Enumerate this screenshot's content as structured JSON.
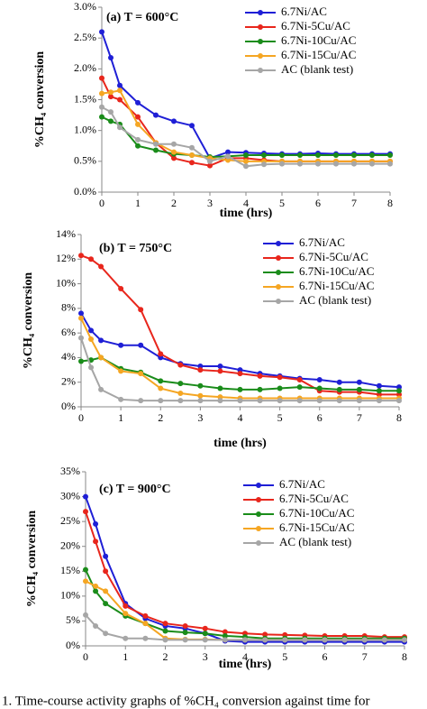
{
  "chart_data": [
    {
      "type": "line",
      "title": "(a) T = 600°C",
      "x_label": "time (hrs)",
      "y_label": "%CH₄ conversion",
      "x": [
        0,
        0.25,
        0.5,
        1,
        1.5,
        2,
        2.5,
        3,
        3.5,
        4,
        4.5,
        5,
        5.5,
        6,
        6.5,
        7,
        7.5,
        8
      ],
      "xlim": [
        0,
        8
      ],
      "xticks": [
        0,
        1,
        2,
        3,
        4,
        5,
        6,
        7,
        8
      ],
      "ylim": [
        0,
        3
      ],
      "yticks": [
        {
          "value": 0,
          "label": "0.0%"
        },
        {
          "value": 0.5,
          "label": "0.5%"
        },
        {
          "value": 1,
          "label": "1.0%"
        },
        {
          "value": 1.5,
          "label": "1.5%"
        },
        {
          "value": 2,
          "label": "2.0%"
        },
        {
          "value": 2.5,
          "label": "2.5%"
        },
        {
          "value": 3,
          "label": "3.0%"
        }
      ],
      "series": [
        {
          "name": "6.7Ni/AC",
          "color": "#1f1fd6",
          "values": [
            2.6,
            2.18,
            1.73,
            1.45,
            1.25,
            1.15,
            1.08,
            0.55,
            0.65,
            0.64,
            0.63,
            0.62,
            0.62,
            0.63,
            0.62,
            0.62,
            0.62,
            0.62
          ]
        },
        {
          "name": "6.7Ni-5Cu/AC",
          "color": "#e8261c",
          "values": [
            1.85,
            1.55,
            1.5,
            1.22,
            0.8,
            0.55,
            0.48,
            0.43,
            0.55,
            0.55,
            0.52,
            0.5,
            0.5,
            0.5,
            0.5,
            0.5,
            0.5,
            0.5
          ]
        },
        {
          "name": "6.7Ni-10Cu/AC",
          "color": "#1a8c1a",
          "values": [
            1.22,
            1.15,
            1.1,
            0.75,
            0.68,
            0.62,
            0.6,
            0.57,
            0.58,
            0.6,
            0.6,
            0.6,
            0.6,
            0.6,
            0.6,
            0.6,
            0.6,
            0.6
          ]
        },
        {
          "name": "6.7Ni-15Cu/AC",
          "color": "#f5a623",
          "values": [
            1.6,
            1.62,
            1.65,
            1.1,
            0.8,
            0.65,
            0.6,
            0.55,
            0.52,
            0.5,
            0.5,
            0.5,
            0.5,
            0.5,
            0.5,
            0.5,
            0.5,
            0.5
          ]
        },
        {
          "name": "AC (blank test)",
          "color": "#a6a6a6",
          "values": [
            1.38,
            1.3,
            1.05,
            0.85,
            0.78,
            0.78,
            0.72,
            0.5,
            0.58,
            0.42,
            0.45,
            0.46,
            0.46,
            0.46,
            0.46,
            0.46,
            0.46,
            0.46
          ]
        }
      ]
    },
    {
      "type": "line",
      "title": "(b) T = 750°C",
      "x_label": "time (hrs)",
      "y_label": "%CH₄ conversion",
      "x": [
        0,
        0.25,
        0.5,
        1,
        1.5,
        2,
        2.5,
        3,
        3.5,
        4,
        4.5,
        5,
        5.5,
        6,
        6.5,
        7,
        7.5,
        8
      ],
      "xlim": [
        0,
        8
      ],
      "xticks": [
        0,
        1,
        2,
        3,
        4,
        5,
        6,
        7,
        8
      ],
      "ylim": [
        0,
        14
      ],
      "yticks": [
        {
          "value": 0,
          "label": "0%"
        },
        {
          "value": 2,
          "label": "2%"
        },
        {
          "value": 4,
          "label": "4%"
        },
        {
          "value": 6,
          "label": "6%"
        },
        {
          "value": 8,
          "label": "8%"
        },
        {
          "value": 10,
          "label": "10%"
        },
        {
          "value": 12,
          "label": "12%"
        },
        {
          "value": 14,
          "label": "14%"
        }
      ],
      "series": [
        {
          "name": "6.7Ni/AC",
          "color": "#1f1fd6",
          "values": [
            7.6,
            6.2,
            5.4,
            5.0,
            5.0,
            4.0,
            3.5,
            3.3,
            3.3,
            3.0,
            2.7,
            2.5,
            2.3,
            2.2,
            2.0,
            2.0,
            1.7,
            1.6
          ]
        },
        {
          "name": "6.7Ni-5Cu/AC",
          "color": "#e8261c",
          "values": [
            12.3,
            12.0,
            11.4,
            9.6,
            7.9,
            4.3,
            3.4,
            3.0,
            2.9,
            2.7,
            2.5,
            2.4,
            2.2,
            1.3,
            1.2,
            1.2,
            1.0,
            1.0
          ]
        },
        {
          "name": "6.7Ni-10Cu/AC",
          "color": "#1a8c1a",
          "values": [
            3.7,
            3.8,
            4.0,
            3.1,
            2.8,
            2.1,
            1.9,
            1.7,
            1.5,
            1.4,
            1.4,
            1.5,
            1.6,
            1.5,
            1.4,
            1.4,
            1.3,
            1.3
          ]
        },
        {
          "name": "6.7Ni-15Cu/AC",
          "color": "#f5a623",
          "values": [
            7.2,
            5.5,
            4.0,
            2.9,
            2.7,
            1.5,
            1.1,
            0.9,
            0.8,
            0.7,
            0.7,
            0.7,
            0.7,
            0.7,
            0.7,
            0.7,
            0.7,
            0.7
          ]
        },
        {
          "name": "AC (blank test)",
          "color": "#a6a6a6",
          "values": [
            5.6,
            3.2,
            1.4,
            0.6,
            0.5,
            0.5,
            0.5,
            0.5,
            0.5,
            0.5,
            0.5,
            0.5,
            0.5,
            0.5,
            0.5,
            0.5,
            0.5,
            0.5
          ]
        }
      ]
    },
    {
      "type": "line",
      "title": "(c) T = 900°C",
      "x_label": "time (hrs)",
      "y_label": "%CH₄ conversion",
      "x": [
        0,
        0.25,
        0.5,
        1,
        1.5,
        2,
        2.5,
        3,
        3.5,
        4,
        4.5,
        5,
        5.5,
        6,
        6.5,
        7,
        7.5,
        8
      ],
      "xlim": [
        0,
        8
      ],
      "xticks": [
        0,
        1,
        2,
        3,
        4,
        5,
        6,
        7,
        8
      ],
      "ylim": [
        0,
        35
      ],
      "yticks": [
        {
          "value": 0,
          "label": "0%"
        },
        {
          "value": 5,
          "label": "5%"
        },
        {
          "value": 10,
          "label": "10%"
        },
        {
          "value": 15,
          "label": "15%"
        },
        {
          "value": 20,
          "label": "20%"
        },
        {
          "value": 25,
          "label": "25%"
        },
        {
          "value": 30,
          "label": "30%"
        },
        {
          "value": 35,
          "label": "35%"
        }
      ],
      "series": [
        {
          "name": "6.7Ni/AC",
          "color": "#1f1fd6",
          "values": [
            30,
            24.5,
            18,
            8.5,
            5.5,
            4,
            3.5,
            2.5,
            1,
            0.8,
            0.8,
            0.8,
            0.8,
            0.8,
            0.8,
            0.8,
            0.8,
            0.8
          ]
        },
        {
          "name": "6.7Ni-5Cu/AC",
          "color": "#e8261c",
          "values": [
            27,
            21,
            15,
            8,
            6,
            4.5,
            4,
            3.5,
            2.8,
            2.5,
            2.3,
            2.2,
            2.1,
            2,
            2,
            2,
            1.8,
            1.8
          ]
        },
        {
          "name": "6.7Ni-10Cu/AC",
          "color": "#1a8c1a",
          "values": [
            15.3,
            11,
            8.5,
            6,
            4.5,
            3,
            2.7,
            2.5,
            2,
            1.8,
            1.5,
            1.5,
            1.5,
            1.5,
            1.5,
            1.5,
            1.5,
            1.5
          ]
        },
        {
          "name": "6.7Ni-15Cu/AC",
          "color": "#f5a623",
          "values": [
            13,
            12,
            11,
            6.5,
            4.5,
            1.5,
            1.3,
            1.3,
            1.2,
            1.2,
            1.2,
            1.2,
            1.2,
            1.2,
            1.2,
            1.2,
            1.2,
            1.2
          ]
        },
        {
          "name": "AC (blank test)",
          "color": "#a6a6a6",
          "values": [
            6.2,
            4,
            2.5,
            1.5,
            1.5,
            1.2,
            1.2,
            1.2,
            1.2,
            1.2,
            1.2,
            1.2,
            1.2,
            1.2,
            1.2,
            1.2,
            1.2,
            1.2
          ]
        }
      ]
    }
  ],
  "caption": "1. Time-course activity graphs of %CH₄ conversion against time for"
}
